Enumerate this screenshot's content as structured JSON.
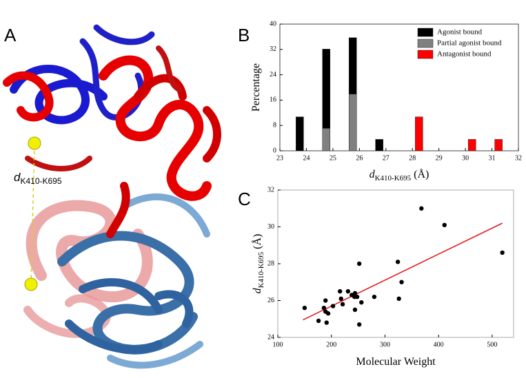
{
  "panel_a": {
    "label": "A",
    "distance_symbol": "d",
    "distance_subscript": "K410-K695"
  },
  "chart_data": [
    {
      "type": "stacked_bar",
      "panel_label": "B",
      "xlabel": {
        "symbol": "d",
        "subscript": "K410-K695",
        "unit": "(Å)"
      },
      "ylabel": "Percentage",
      "x": [
        23.75,
        24.75,
        25.75,
        26.75,
        28.25,
        30.25,
        31.25
      ],
      "series": [
        {
          "name": "Agonist bound",
          "color": "#000000",
          "values": [
            10.7,
            25.0,
            17.8,
            3.6,
            0,
            0,
            0
          ]
        },
        {
          "name": "Partial agonist bound",
          "color": "#808080",
          "values": [
            0,
            7.1,
            17.9,
            0,
            0,
            0,
            0
          ]
        },
        {
          "name": "Antagonist bound",
          "color": "#ff0000",
          "values": [
            0,
            0,
            0,
            0,
            10.7,
            3.6,
            3.6
          ]
        }
      ],
      "xlim": [
        23,
        32
      ],
      "xticks": [
        23,
        24,
        25,
        26,
        27,
        28,
        29,
        30,
        31,
        32
      ],
      "ylim": [
        0,
        40
      ],
      "yticks": [
        0,
        8,
        16,
        24,
        32,
        40
      ],
      "legend": "top-right"
    },
    {
      "type": "scatter",
      "panel_label": "C",
      "xlabel": "Molecular Weight",
      "ylabel": {
        "symbol": "d",
        "subscript": "K410-K695",
        "unit": "(Å)"
      },
      "points": {
        "color": "#000000",
        "x": [
          150,
          176,
          189,
          189,
          191,
          186,
          194,
          203,
          216,
          218,
          221,
          231,
          238,
          243,
          244,
          248,
          244,
          252,
          256,
          252,
          280,
          324,
          326,
          331,
          368,
          411,
          519
        ],
        "values": [
          25.6,
          24.9,
          26.0,
          25.4,
          24.8,
          25.6,
          25.3,
          25.7,
          26.5,
          26.1,
          25.8,
          26.5,
          26.3,
          26.2,
          25.5,
          26.2,
          26.4,
          28.0,
          25.9,
          24.7,
          26.2,
          28.1,
          26.1,
          27.0,
          31.0,
          30.1,
          28.6
        ]
      },
      "fit_line": {
        "color": "#e41a1c",
        "x": [
          147,
          519
        ],
        "values": [
          24.95,
          30.2
        ]
      },
      "xlim": [
        100,
        540
      ],
      "xticks": [
        100,
        200,
        300,
        400,
        500
      ],
      "ylim": [
        24,
        32
      ],
      "yticks": [
        24,
        26,
        28,
        30,
        32
      ]
    }
  ]
}
